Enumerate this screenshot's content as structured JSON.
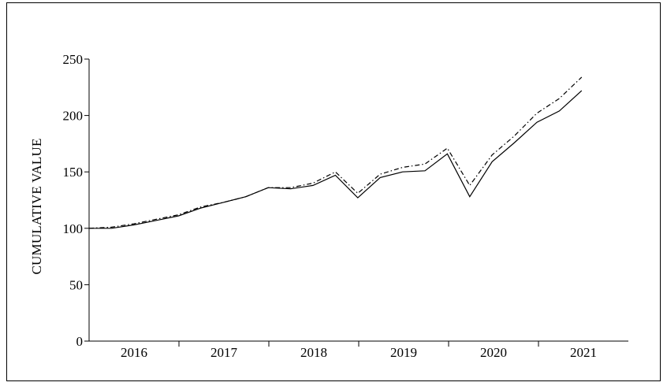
{
  "chart_data": {
    "type": "line",
    "title": "",
    "xlabel": "",
    "ylabel": "CUMULATIVE VALUE",
    "x_tick_labels": [
      "2016",
      "2017",
      "2018",
      "2019",
      "2020",
      "2021"
    ],
    "y_ticks": [
      0,
      50,
      100,
      150,
      200,
      250
    ],
    "ylim": [
      0,
      250
    ],
    "x": [
      "2015-Q4",
      "2016-Q1",
      "2016-Q2",
      "2016-Q3",
      "2016-Q4",
      "2017-Q1",
      "2017-Q2",
      "2017-Q3",
      "2017-Q4",
      "2018-Q1",
      "2018-Q2",
      "2018-Q3",
      "2018-Q4",
      "2019-Q1",
      "2019-Q2",
      "2019-Q3",
      "2019-Q4",
      "2020-Q1",
      "2020-Q2",
      "2020-Q3",
      "2020-Q4",
      "2021-Q1",
      "2021-Q2"
    ],
    "grid": false,
    "legend": "none",
    "series": [
      {
        "style": "solid",
        "color": "#000000",
        "values": [
          100,
          100,
          103,
          107,
          111,
          118,
          123,
          128,
          136,
          135,
          138,
          147,
          127,
          145,
          150,
          151,
          166,
          128,
          159,
          176,
          194,
          204,
          222
        ]
      },
      {
        "style": "dash-dot",
        "color": "#000000",
        "values": [
          100,
          101,
          104,
          108,
          112,
          119,
          123,
          128,
          136,
          136,
          140,
          150,
          131,
          148,
          154,
          157,
          171,
          138,
          165,
          182,
          202,
          215,
          234
        ]
      }
    ]
  }
}
